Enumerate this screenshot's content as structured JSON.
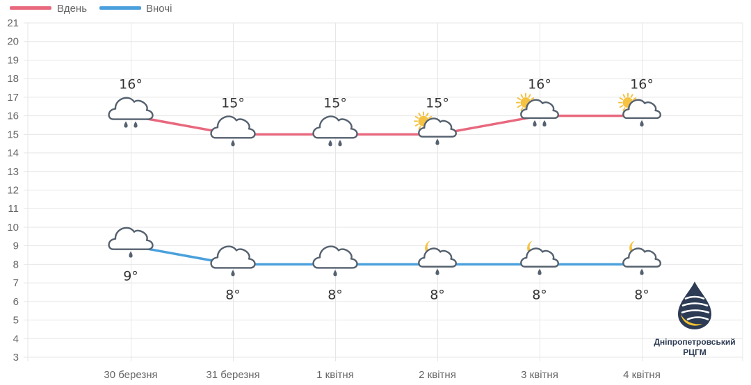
{
  "chart_data": {
    "type": "line",
    "categories": [
      "30 березня",
      "31 березня",
      "1 квітня",
      "2 квітня",
      "3 квітня",
      "4 квітня"
    ],
    "series": [
      {
        "name": "Вдень",
        "color": "#e8687e",
        "values": [
          16,
          15,
          15,
          15,
          16,
          16
        ],
        "labels": [
          "16°",
          "15°",
          "15°",
          "15°",
          "16°",
          "16°"
        ],
        "icons": [
          "cloud-rain-heavy",
          "cloud-rain",
          "cloud-rain-heavy",
          "sun-cloud-rain",
          "sun-cloud-rain-heavy",
          "sun-cloud-rain"
        ]
      },
      {
        "name": "Вночі",
        "color": "#4aa0dc",
        "values": [
          9,
          8,
          8,
          8,
          8,
          8
        ],
        "labels": [
          "9°",
          "8°",
          "8°",
          "8°",
          "8°",
          "8°"
        ],
        "icons": [
          "cloud-rain",
          "cloud-rain",
          "cloud-rain",
          "moon-cloud-rain",
          "moon-cloud-rain",
          "moon-cloud-rain"
        ]
      }
    ],
    "ylim": [
      3,
      21
    ],
    "yticks": [
      "3",
      "4",
      "5",
      "6",
      "7",
      "8",
      "9",
      "10",
      "11",
      "12",
      "13",
      "14",
      "15",
      "16",
      "17",
      "18",
      "19",
      "20",
      "21"
    ],
    "grid": true,
    "legend": "top-left"
  },
  "logo": {
    "line1": "Дніпропетровський",
    "line2": "РЦГМ"
  }
}
